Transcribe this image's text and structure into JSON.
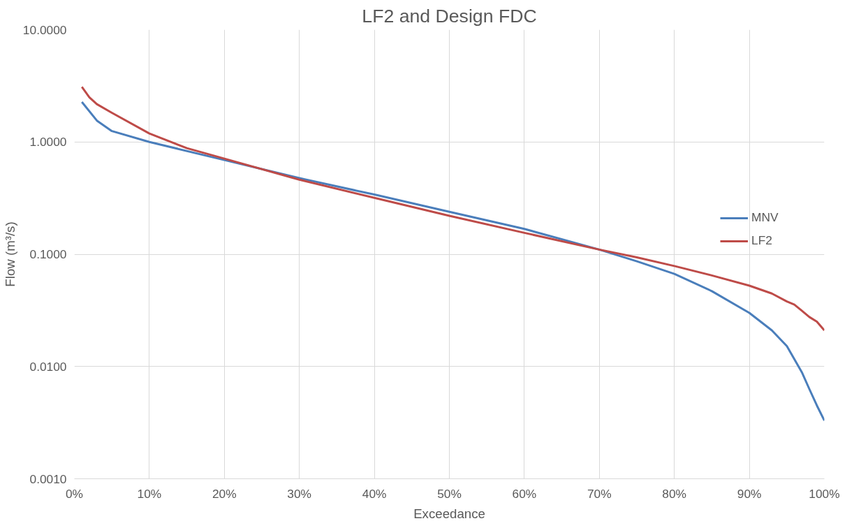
{
  "chart_data": {
    "type": "line",
    "title": "LF2 and Design FDC",
    "xlabel": "Exceedance",
    "ylabel": "Flow (m³/s)",
    "log": "y",
    "grid": true,
    "legend": "right",
    "line_style": "solid",
    "marker": "none",
    "xlim": [
      0,
      100
    ],
    "xticks": [
      {
        "value": 0,
        "label": "0%"
      },
      {
        "value": 10,
        "label": "10%"
      },
      {
        "value": 20,
        "label": "20%"
      },
      {
        "value": 30,
        "label": "30%"
      },
      {
        "value": 40,
        "label": "40%"
      },
      {
        "value": 50,
        "label": "50%"
      },
      {
        "value": 60,
        "label": "60%"
      },
      {
        "value": 70,
        "label": "70%"
      },
      {
        "value": 80,
        "label": "80%"
      },
      {
        "value": 90,
        "label": "90%"
      },
      {
        "value": 100,
        "label": "100%"
      }
    ],
    "ylim": [
      0.001,
      10
    ],
    "yticks": [
      {
        "value": 0.001,
        "label": "0.0010"
      },
      {
        "value": 0.01,
        "label": "0.0100"
      },
      {
        "value": 0.1,
        "label": "0.1000"
      },
      {
        "value": 1,
        "label": "1.0000"
      },
      {
        "value": 10,
        "label": "10.0000"
      }
    ],
    "series": [
      {
        "name": "MNV",
        "color": "#4a7ebb",
        "x": [
          1,
          3,
          5,
          10,
          20,
          30,
          40,
          50,
          60,
          70,
          75,
          80,
          85,
          90,
          93,
          95,
          97,
          98,
          99,
          100
        ],
        "values": [
          2.27,
          1.55,
          1.25,
          1.0,
          0.69,
          0.476,
          0.34,
          0.239,
          0.168,
          0.11,
          0.0865,
          0.0668,
          0.0469,
          0.03,
          0.021,
          0.0152,
          0.0089,
          0.0063,
          0.0045,
          0.0033
        ]
      },
      {
        "name": "LF2",
        "color": "#be4b48",
        "x": [
          1,
          2,
          3,
          5,
          10,
          15,
          20,
          30,
          40,
          50,
          60,
          70,
          75,
          80,
          85,
          90,
          93,
          95,
          96,
          97,
          98,
          99,
          100
        ],
        "values": [
          3.09,
          2.5,
          2.17,
          1.82,
          1.19,
          0.88,
          0.71,
          0.461,
          0.318,
          0.22,
          0.155,
          0.11,
          0.0937,
          0.0785,
          0.0647,
          0.0525,
          0.0447,
          0.038,
          0.0356,
          0.0314,
          0.0276,
          0.0251,
          0.021
        ]
      }
    ]
  }
}
